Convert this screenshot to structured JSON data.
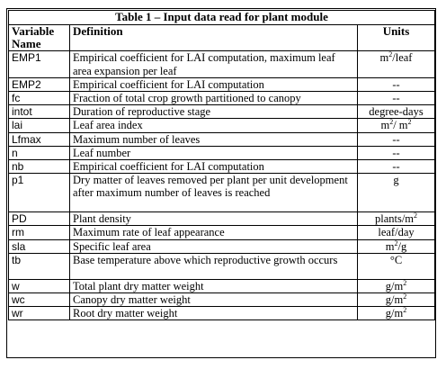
{
  "table": {
    "caption": "Table 1 – Input data read for plant module",
    "headers": {
      "variable": "Variable Name",
      "definition": "Definition",
      "units": "Units"
    },
    "rows": [
      {
        "variable": "EMP1",
        "definition": "Empirical coefficient for LAI computation, maximum leaf area expansion per leaf",
        "unit_base": "m",
        "unit_sup": "2",
        "unit_rest": "/leaf",
        "unit_sup2": "",
        "unit_tail": ""
      },
      {
        "variable": "EMP2",
        "definition": "Empirical coefficient for LAI computation",
        "unit_base": "--",
        "unit_sup": "",
        "unit_rest": "",
        "unit_sup2": "",
        "unit_tail": ""
      },
      {
        "variable": "fc",
        "definition": "Fraction of total crop growth partitioned to canopy",
        "unit_base": "--",
        "unit_sup": "",
        "unit_rest": "",
        "unit_sup2": "",
        "unit_tail": ""
      },
      {
        "variable": "intot",
        "definition": "Duration of reproductive stage",
        "unit_base": "degree-days",
        "unit_sup": "",
        "unit_rest": "",
        "unit_sup2": "",
        "unit_tail": ""
      },
      {
        "variable": "lai",
        "definition": "Leaf area index",
        "unit_base": "m",
        "unit_sup": "2",
        "unit_rest": "/ m",
        "unit_sup2": "2",
        "unit_tail": ""
      },
      {
        "variable": "Lfmax",
        "definition": "Maximum number of leaves",
        "unit_base": "--",
        "unit_sup": "",
        "unit_rest": "",
        "unit_sup2": "",
        "unit_tail": ""
      },
      {
        "variable": "n",
        "definition": "Leaf number",
        "unit_base": "--",
        "unit_sup": "",
        "unit_rest": "",
        "unit_sup2": "",
        "unit_tail": ""
      },
      {
        "variable": "nb",
        "definition": "Empirical coefficient for LAI computation",
        "unit_base": "--",
        "unit_sup": "",
        "unit_rest": "",
        "unit_sup2": "",
        "unit_tail": ""
      },
      {
        "variable": "p1",
        "definition": "Dry matter of leaves removed per plant per unit development after maximum number of leaves is reached",
        "unit_base": "g",
        "unit_sup": "",
        "unit_rest": "",
        "unit_sup2": "",
        "unit_tail": ""
      },
      {
        "variable": "PD",
        "definition": "Plant density",
        "unit_base": "plants/m",
        "unit_sup": "2",
        "unit_rest": "",
        "unit_sup2": "",
        "unit_tail": ""
      },
      {
        "variable": "rm",
        "definition": "Maximum rate of leaf appearance",
        "unit_base": "leaf/day",
        "unit_sup": "",
        "unit_rest": "",
        "unit_sup2": "",
        "unit_tail": ""
      },
      {
        "variable": "sla",
        "definition": "Specific leaf area",
        "unit_base": "m",
        "unit_sup": "2",
        "unit_rest": "/g",
        "unit_sup2": "",
        "unit_tail": ""
      },
      {
        "variable": "tb",
        "definition": "Base temperature above which reproductive growth occurs",
        "unit_base": "°C",
        "unit_sup": "",
        "unit_rest": "",
        "unit_sup2": "",
        "unit_tail": ""
      },
      {
        "variable": "w",
        "definition": "Total plant dry matter weight",
        "unit_base": "g/m",
        "unit_sup": "2",
        "unit_rest": "",
        "unit_sup2": "",
        "unit_tail": ""
      },
      {
        "variable": "wc",
        "definition": "Canopy dry matter weight",
        "unit_base": "g/m",
        "unit_sup": "2",
        "unit_rest": "",
        "unit_sup2": "",
        "unit_tail": ""
      },
      {
        "variable": "wr",
        "definition": "Root dry matter weight",
        "unit_base": "g/m",
        "unit_sup": "2",
        "unit_rest": "",
        "unit_sup2": "",
        "unit_tail": ""
      }
    ]
  }
}
